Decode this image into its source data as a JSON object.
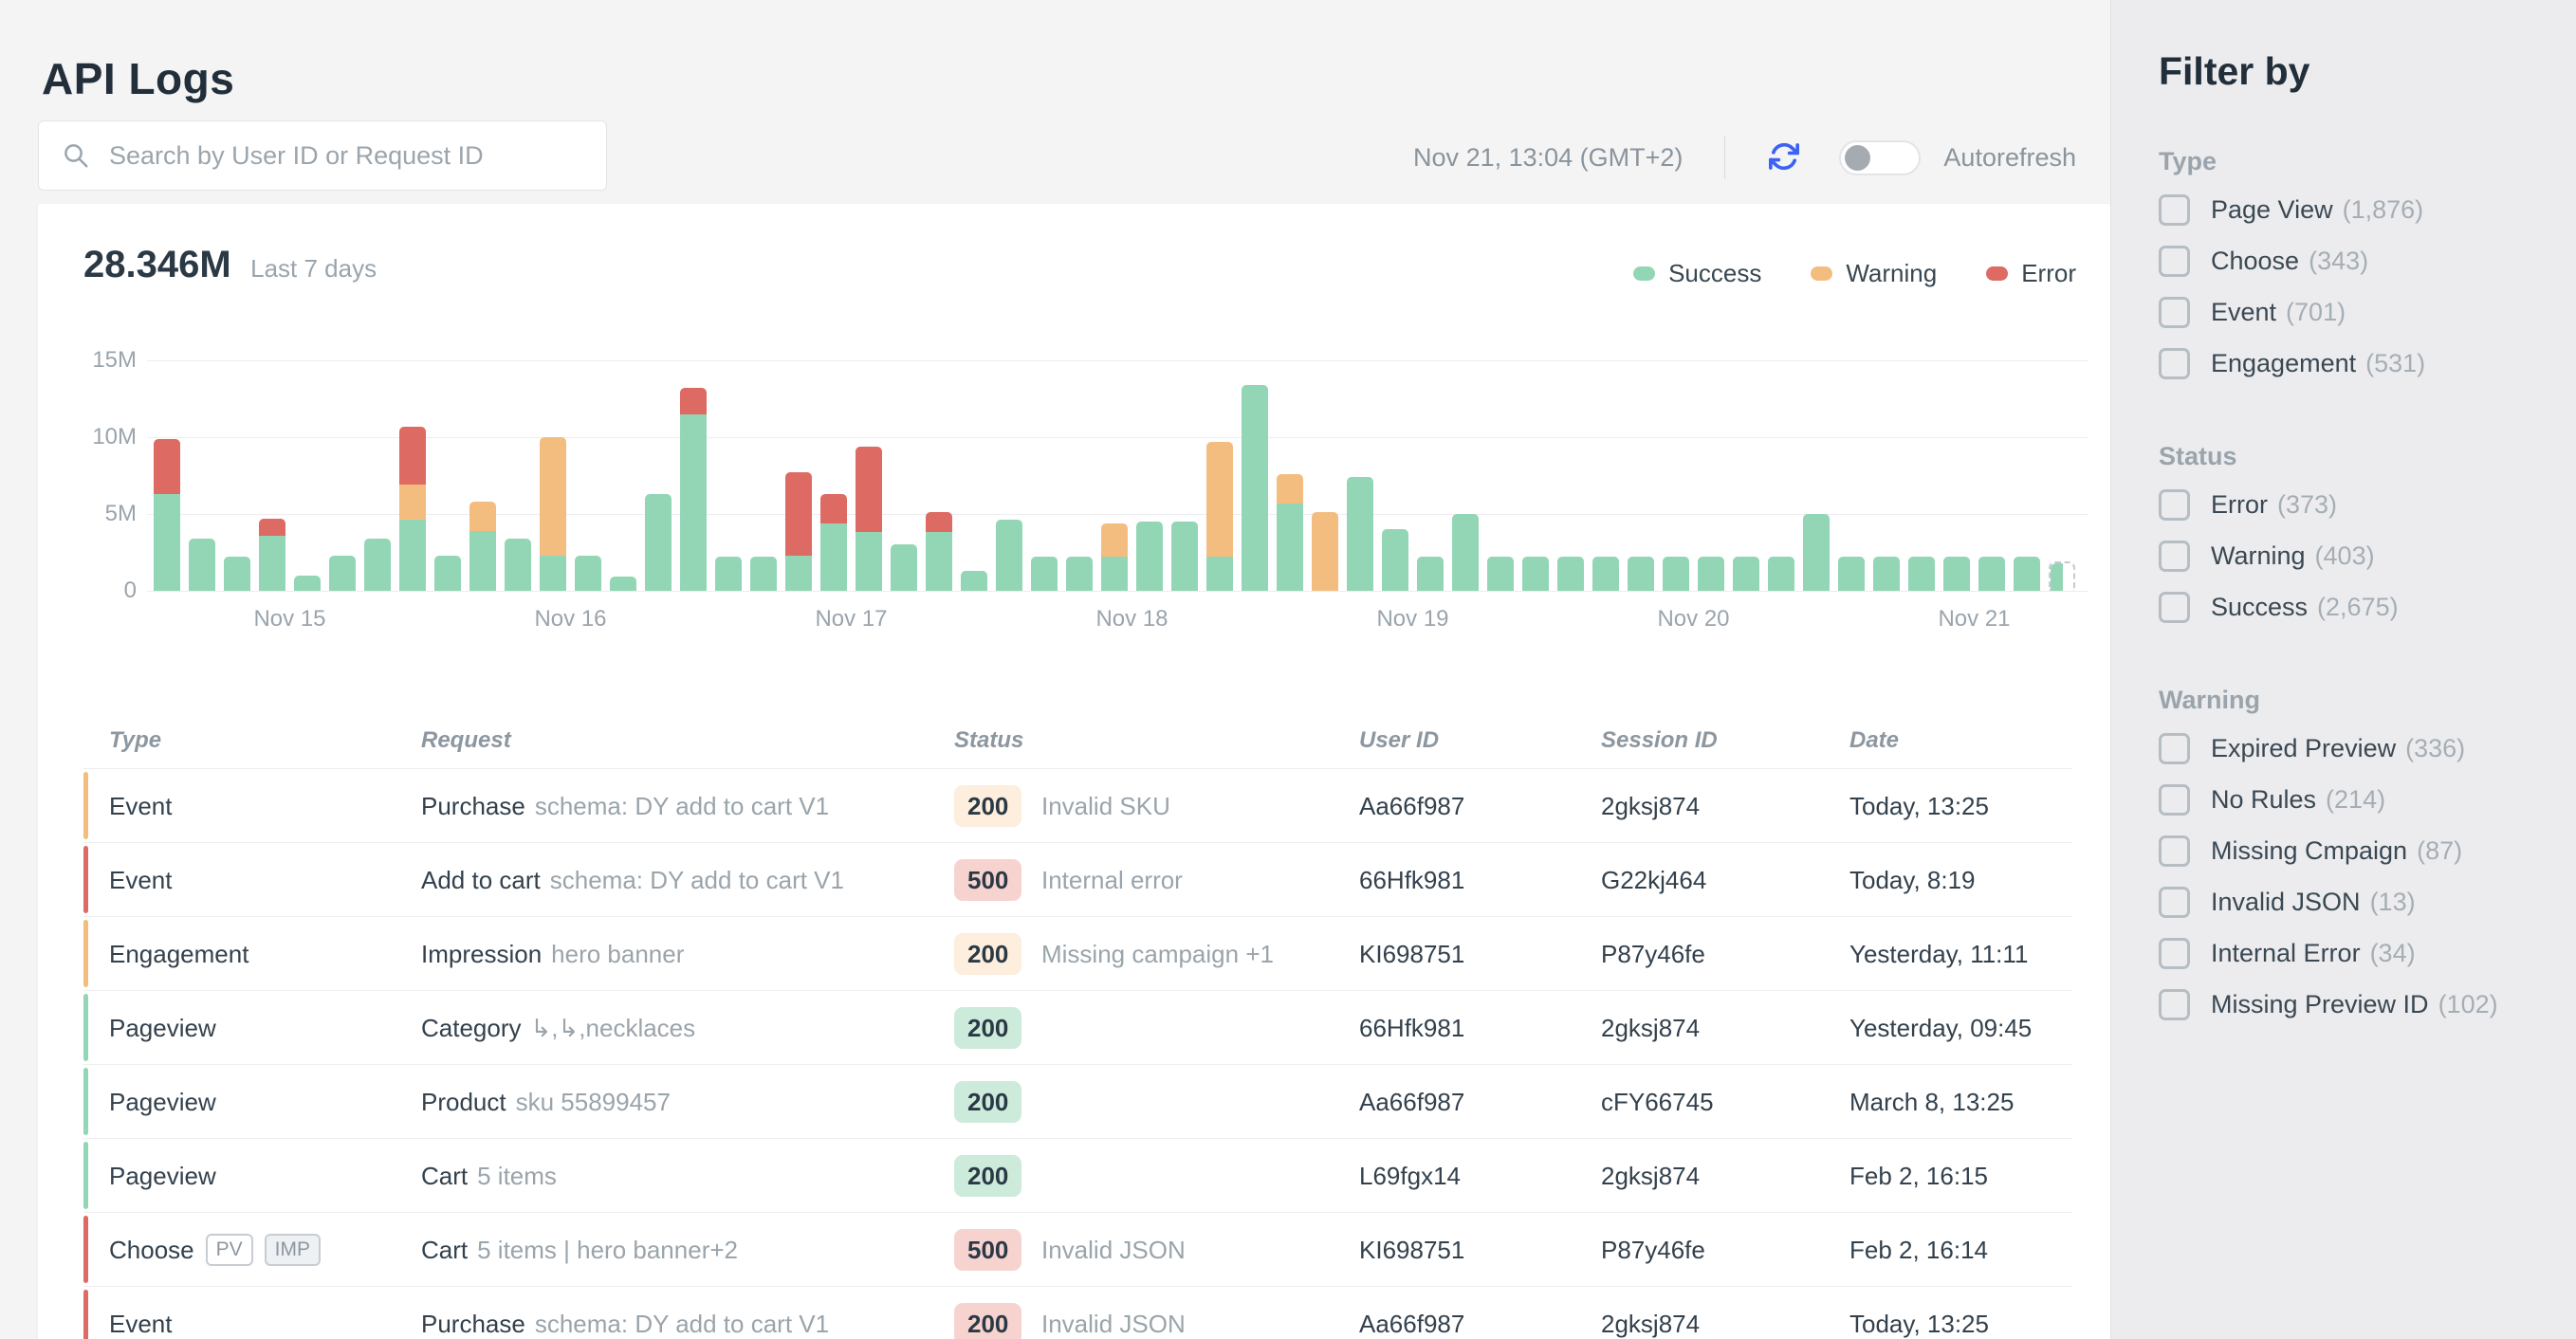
{
  "header": {
    "title": "API Logs",
    "search_placeholder": "Search by User ID or Request ID",
    "timestamp": "Nov 21, 13:04 (GMT+2)",
    "autorefresh_label": "Autorefresh",
    "autorefresh_on": false
  },
  "colors": {
    "success": "#93d6b5",
    "warning": "#f4bd80",
    "error": "#dd6a63",
    "badge_success_bg": "#cdebdb",
    "badge_warning_bg": "#fdeedd",
    "badge_error_bg": "#f7d3d0",
    "accent_blue": "#3b62f3"
  },
  "chart_data": {
    "type": "bar",
    "stacked": true,
    "title": "28.346M",
    "subtitle": "Last 7 days",
    "unit": "millions",
    "ylim": [
      0,
      15
    ],
    "grid": true,
    "legend_position": "top-right",
    "legend": [
      {
        "name": "Success",
        "color": "#93d6b5"
      },
      {
        "name": "Warning",
        "color": "#f4bd80"
      },
      {
        "name": "Error",
        "color": "#dd6a63"
      }
    ],
    "y_ticks": [
      {
        "label": "15M",
        "value": 15
      },
      {
        "label": "10M",
        "value": 10
      },
      {
        "label": "5M",
        "value": 5
      },
      {
        "label": "0",
        "value": 0
      }
    ],
    "x_ticks": [
      {
        "label": "Nov 15",
        "after_bar": 4
      },
      {
        "label": "Nov 16",
        "after_bar": 12
      },
      {
        "label": "Nov 17",
        "after_bar": 20
      },
      {
        "label": "Nov 18",
        "after_bar": 28
      },
      {
        "label": "Nov 19",
        "after_bar": 36
      },
      {
        "label": "Nov 20",
        "after_bar": 44
      },
      {
        "label": "Nov 21",
        "after_bar": 52
      }
    ],
    "series_order": [
      "success",
      "warning",
      "error"
    ],
    "bars": [
      {
        "success": 6.3,
        "error": 3.6
      },
      {
        "success": 3.4
      },
      {
        "success": 2.2
      },
      {
        "success": 3.6,
        "error": 1.1
      },
      {
        "success": 1.0
      },
      {
        "success": 2.3
      },
      {
        "success": 3.4
      },
      {
        "success": 4.6,
        "warning": 2.3,
        "error": 3.8
      },
      {
        "success": 2.3
      },
      {
        "success": 3.9,
        "warning": 1.9
      },
      {
        "success": 3.4
      },
      {
        "success": 2.3,
        "warning": 7.7
      },
      {
        "success": 2.3
      },
      {
        "success": 0.9
      },
      {
        "success": 6.3
      },
      {
        "success": 11.5,
        "error": 1.7
      },
      {
        "success": 2.2
      },
      {
        "success": 2.2
      },
      {
        "success": 2.3,
        "error": 5.4
      },
      {
        "success": 4.4,
        "error": 1.9
      },
      {
        "success": 3.8,
        "error": 5.6
      },
      {
        "success": 3.0
      },
      {
        "success": 3.8,
        "error": 1.3
      },
      {
        "success": 1.3
      },
      {
        "success": 4.6
      },
      {
        "success": 2.2
      },
      {
        "success": 2.2
      },
      {
        "success": 2.2,
        "warning": 2.2
      },
      {
        "success": 4.5
      },
      {
        "success": 4.5
      },
      {
        "success": 2.2,
        "warning": 7.5
      },
      {
        "success": 13.4
      },
      {
        "success": 5.7,
        "warning": 1.9
      },
      {
        "warning": 5.1
      },
      {
        "success": 7.4
      },
      {
        "success": 4.0
      },
      {
        "success": 2.2
      },
      {
        "success": 5.0
      },
      {
        "success": 2.2
      },
      {
        "success": 2.2
      },
      {
        "success": 2.2
      },
      {
        "success": 2.2
      },
      {
        "success": 2.2
      },
      {
        "success": 2.2
      },
      {
        "success": 2.2
      },
      {
        "success": 2.2
      },
      {
        "success": 2.2
      },
      {
        "success": 5.0
      },
      {
        "success": 2.2
      },
      {
        "success": 2.2
      },
      {
        "success": 2.2
      },
      {
        "success": 2.2
      },
      {
        "success": 2.2
      },
      {
        "success": 2.2
      },
      {
        "success": 1.9,
        "partial": true
      }
    ]
  },
  "table": {
    "columns": [
      "Type",
      "Request",
      "Status",
      "User ID",
      "Session ID",
      "Date"
    ],
    "rows": [
      {
        "strip": "warning",
        "type": "Event",
        "type_badges": [],
        "request": "Purchase",
        "request_sub": "schema: DY add to cart V1",
        "status": "200",
        "status_kind": "warning",
        "status_note": "Invalid SKU",
        "user_id": "Aa66f987",
        "session_id": "2gksj874",
        "date": "Today, 13:25"
      },
      {
        "strip": "error",
        "type": "Event",
        "type_badges": [],
        "request": "Add to cart",
        "request_sub": "schema: DY add to cart V1",
        "status": "500",
        "status_kind": "error",
        "status_note": "Internal error",
        "user_id": "66Hfk981",
        "session_id": "G22kj464",
        "date": "Today, 8:19"
      },
      {
        "strip": "warning",
        "type": "Engagement",
        "type_badges": [],
        "request": "Impression",
        "request_sub": "hero banner",
        "status": "200",
        "status_kind": "warning",
        "status_note": "Missing campaign +1",
        "user_id": "KI698751",
        "session_id": "P87y46fe",
        "date": "Yesterday, 11:11"
      },
      {
        "strip": "success",
        "type": "Pageview",
        "type_badges": [],
        "request": "Category",
        "request_sub": "↳,↳,necklaces",
        "status": "200",
        "status_kind": "success",
        "status_note": "",
        "user_id": "66Hfk981",
        "session_id": "2gksj874",
        "date": "Yesterday, 09:45"
      },
      {
        "strip": "success",
        "type": "Pageview",
        "type_badges": [],
        "request": "Product",
        "request_sub": "sku 55899457",
        "status": "200",
        "status_kind": "success",
        "status_note": "",
        "user_id": "Aa66f987",
        "session_id": "cFY66745",
        "date": "March 8, 13:25"
      },
      {
        "strip": "success",
        "type": "Pageview",
        "type_badges": [],
        "request": "Cart",
        "request_sub": "5 items",
        "status": "200",
        "status_kind": "success",
        "status_note": "",
        "user_id": "L69fgx14",
        "session_id": "2gksj874",
        "date": "Feb 2, 16:15"
      },
      {
        "strip": "error",
        "type": "Choose",
        "type_badges": [
          "PV",
          "IMP"
        ],
        "request": "Cart",
        "request_sub": "5 items | hero banner+2",
        "status": "500",
        "status_kind": "error",
        "status_note": "Invalid JSON",
        "user_id": "KI698751",
        "session_id": "P87y46fe",
        "date": "Feb 2, 16:14"
      },
      {
        "strip": "error",
        "type": "Event",
        "type_badges": [],
        "request": "Purchase",
        "request_sub": "schema: DY add to cart V1",
        "status": "200",
        "status_kind": "error",
        "status_note": "Invalid JSON",
        "user_id": "Aa66f987",
        "session_id": "2gksj874",
        "date": "Today, 13:25"
      }
    ]
  },
  "filters": {
    "title": "Filter by",
    "sections": [
      {
        "label": "Type",
        "items": [
          {
            "label": "Page View",
            "count": "(1,876)",
            "checked": false
          },
          {
            "label": "Choose",
            "count": "(343)",
            "checked": false
          },
          {
            "label": "Event",
            "count": "(701)",
            "checked": false
          },
          {
            "label": "Engagement",
            "count": "(531)",
            "checked": false
          }
        ]
      },
      {
        "label": "Status",
        "items": [
          {
            "label": "Error",
            "count": "(373)",
            "checked": false
          },
          {
            "label": "Warning",
            "count": "(403)",
            "checked": false
          },
          {
            "label": "Success",
            "count": "(2,675)",
            "checked": false
          }
        ]
      },
      {
        "label": "Warning",
        "items": [
          {
            "label": "Expired Preview",
            "count": "(336)",
            "checked": false
          },
          {
            "label": "No Rules",
            "count": "(214)",
            "checked": false
          },
          {
            "label": "Missing Cmpaign",
            "count": "(87)",
            "checked": false
          },
          {
            "label": "Invalid JSON",
            "count": "(13)",
            "checked": false
          },
          {
            "label": "Internal Error",
            "count": "(34)",
            "checked": false
          },
          {
            "label": "Missing Preview ID",
            "count": "(102)",
            "checked": false
          }
        ]
      }
    ]
  }
}
